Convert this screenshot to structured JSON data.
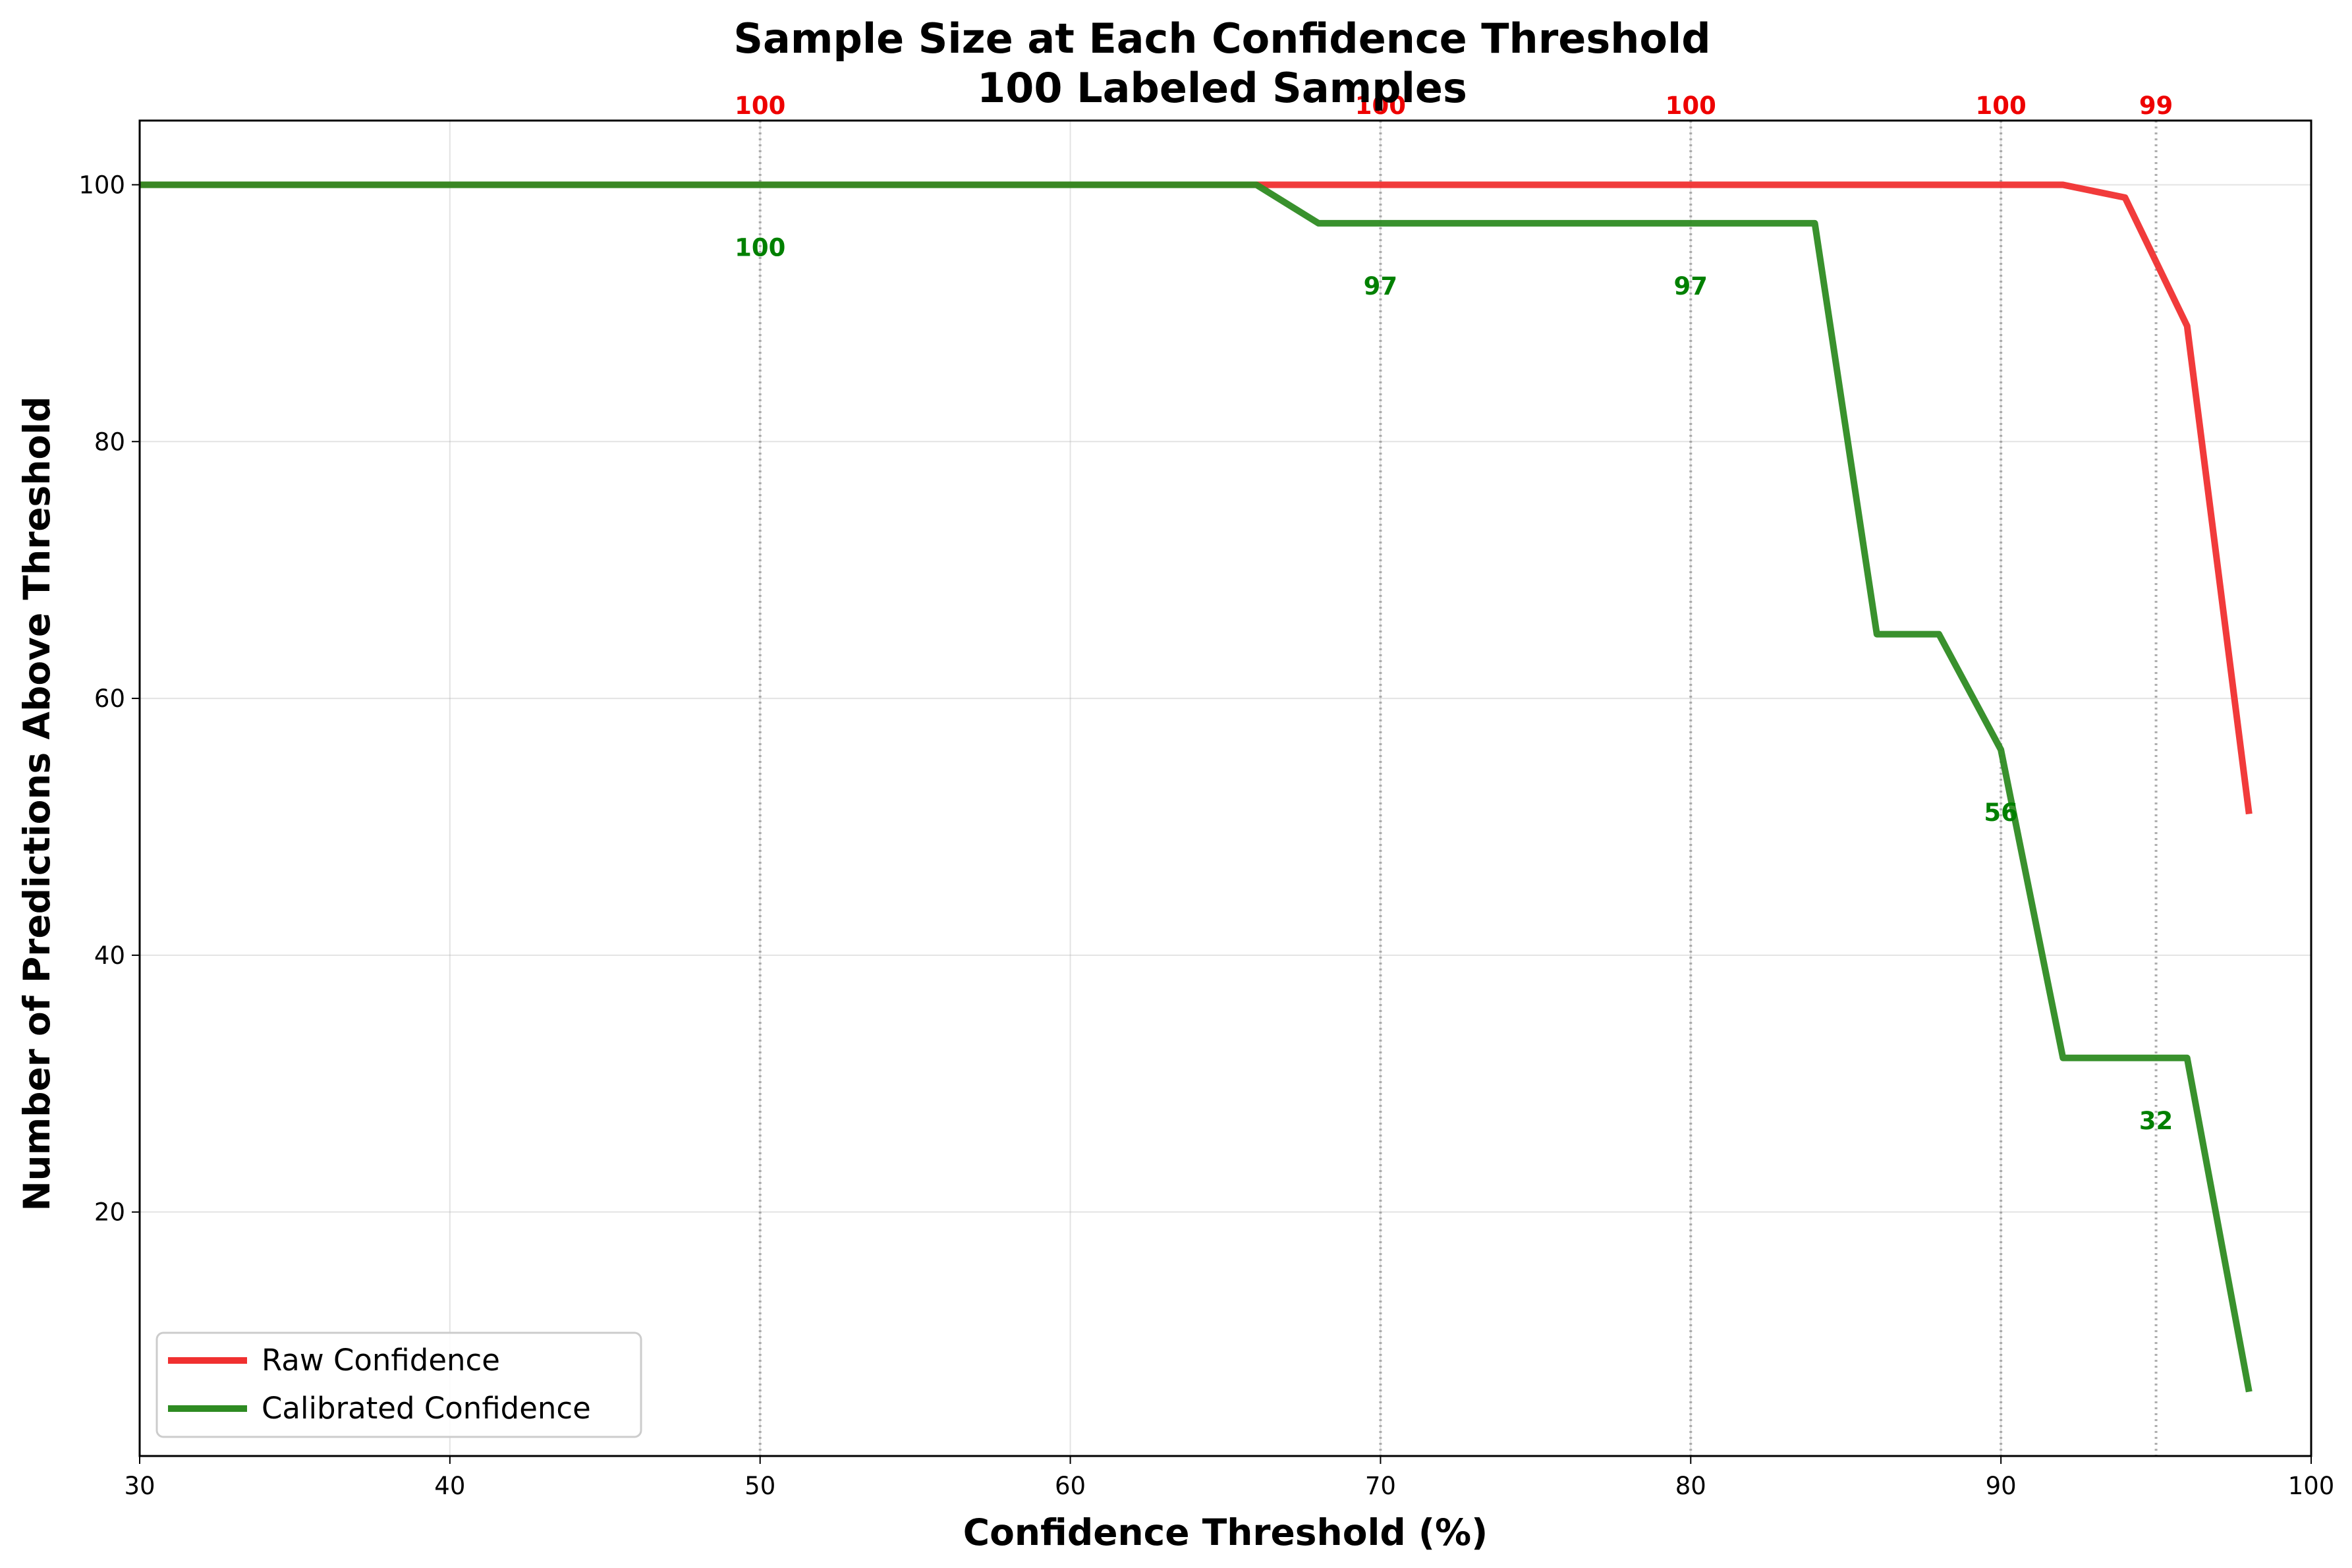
{
  "chart_data": {
    "type": "line",
    "title": "Sample Size at Each Confidence Threshold",
    "subtitle": "100 Labeled Samples",
    "xlabel": "Confidence Threshold (%)",
    "ylabel": "Number of Predictions Above Threshold",
    "xlim": [
      30,
      100
    ],
    "ylim": [
      1,
      105
    ],
    "xticks": [
      30,
      40,
      50,
      60,
      70,
      80,
      90,
      100
    ],
    "yticks": [
      20,
      40,
      60,
      80,
      100
    ],
    "grid": true,
    "legend_position": "bottom-left",
    "reference_lines": [
      50,
      70,
      80,
      90,
      95
    ],
    "x": [
      30,
      32,
      34,
      36,
      38,
      40,
      42,
      44,
      46,
      48,
      50,
      52,
      54,
      56,
      58,
      60,
      62,
      64,
      66,
      68,
      70,
      72,
      74,
      76,
      78,
      80,
      82,
      84,
      86,
      88,
      90,
      92,
      94,
      96,
      98
    ],
    "series": [
      {
        "name": "Raw Confidence",
        "color": "#f03030",
        "values": [
          100,
          100,
          100,
          100,
          100,
          100,
          100,
          100,
          100,
          100,
          100,
          100,
          100,
          100,
          100,
          100,
          100,
          100,
          100,
          100,
          100,
          100,
          100,
          100,
          100,
          100,
          100,
          100,
          100,
          100,
          100,
          100,
          99,
          89,
          51
        ],
        "annotations": [
          {
            "x": 50,
            "label": "100"
          },
          {
            "x": 70,
            "label": "100"
          },
          {
            "x": 80,
            "label": "100"
          },
          {
            "x": 90,
            "label": "100"
          },
          {
            "x": 95,
            "label": "99"
          }
        ]
      },
      {
        "name": "Calibrated Confidence",
        "color": "#2e8b22",
        "label_color": "#008000",
        "values": [
          100,
          100,
          100,
          100,
          100,
          100,
          100,
          100,
          100,
          100,
          100,
          100,
          100,
          100,
          100,
          100,
          100,
          100,
          100,
          97,
          97,
          97,
          97,
          97,
          97,
          97,
          97,
          97,
          65,
          65,
          56,
          32,
          32,
          32,
          6
        ],
        "annotations": [
          {
            "x": 50,
            "label": "100"
          },
          {
            "x": 70,
            "label": "97"
          },
          {
            "x": 80,
            "label": "97"
          },
          {
            "x": 90,
            "label": "56"
          },
          {
            "x": 95,
            "label": "32"
          }
        ]
      }
    ]
  }
}
